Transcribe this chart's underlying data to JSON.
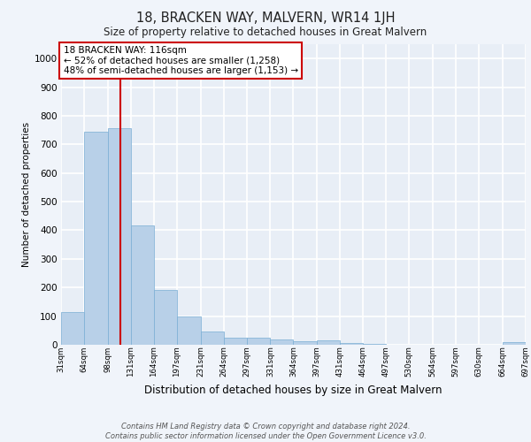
{
  "title": "18, BRACKEN WAY, MALVERN, WR14 1JH",
  "subtitle": "Size of property relative to detached houses in Great Malvern",
  "xlabel": "Distribution of detached houses by size in Great Malvern",
  "ylabel": "Number of detached properties",
  "bar_color": "#b8d0e8",
  "bar_edge_color": "#7aaed4",
  "background_color": "#e8eef6",
  "grid_color": "#ffffff",
  "vline_x": 116,
  "vline_color": "#cc0000",
  "annotation_text": "18 BRACKEN WAY: 116sqm\n← 52% of detached houses are smaller (1,258)\n48% of semi-detached houses are larger (1,153) →",
  "annotation_box_color": "#ffffff",
  "annotation_box_edge": "#cc0000",
  "footer": "Contains HM Land Registry data © Crown copyright and database right 2024.\nContains public sector information licensed under the Open Government Licence v3.0.",
  "bin_edges": [
    31,
    64,
    98,
    131,
    164,
    197,
    231,
    264,
    297,
    331,
    364,
    397,
    431,
    464,
    497,
    530,
    564,
    597,
    630,
    664,
    697
  ],
  "bar_heights": [
    113,
    745,
    757,
    418,
    191,
    99,
    45,
    26,
    25,
    17,
    13,
    15,
    5,
    2,
    1,
    0,
    0,
    0,
    0,
    8
  ],
  "ylim": [
    0,
    1050
  ],
  "yticks": [
    0,
    100,
    200,
    300,
    400,
    500,
    600,
    700,
    800,
    900,
    1000
  ],
  "tick_labels": [
    "31sqm",
    "64sqm",
    "98sqm",
    "131sqm",
    "164sqm",
    "197sqm",
    "231sqm",
    "264sqm",
    "297sqm",
    "331sqm",
    "364sqm",
    "397sqm",
    "431sqm",
    "464sqm",
    "497sqm",
    "530sqm",
    "564sqm",
    "597sqm",
    "630sqm",
    "664sqm",
    "697sqm"
  ]
}
